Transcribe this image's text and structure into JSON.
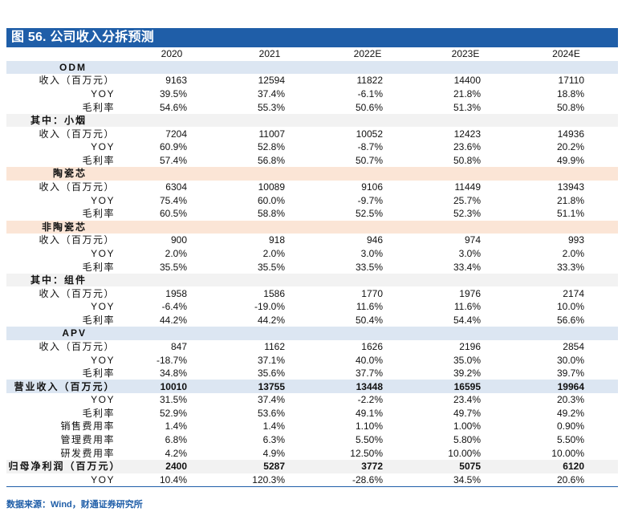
{
  "title": "图 56. 公司收入分拆预测",
  "years": [
    "2020",
    "2021",
    "2022E",
    "2023E",
    "2024E"
  ],
  "rows": [
    {
      "type": "section",
      "shade": "blue",
      "label": "ODM",
      "values": [
        "",
        "",
        "",
        "",
        ""
      ]
    },
    {
      "type": "data",
      "shade": "white",
      "label": "收入（百万元）",
      "values": [
        "9163",
        "12594",
        "11822",
        "14400",
        "17110"
      ]
    },
    {
      "type": "data",
      "shade": "white",
      "label": "YOY",
      "values": [
        "39.5%",
        "37.4%",
        "-6.1%",
        "21.8%",
        "18.8%"
      ]
    },
    {
      "type": "data",
      "shade": "white",
      "label": "毛利率",
      "values": [
        "54.6%",
        "55.3%",
        "50.6%",
        "51.3%",
        "50.8%"
      ]
    },
    {
      "type": "section",
      "shade": "light",
      "label": "其中：小烟",
      "values": [
        "",
        "",
        "",
        "",
        ""
      ]
    },
    {
      "type": "data",
      "shade": "white",
      "label": "收入（百万元）",
      "values": [
        "7204",
        "11007",
        "10052",
        "12423",
        "14936"
      ]
    },
    {
      "type": "data",
      "shade": "white",
      "label": "YOY",
      "values": [
        "60.9%",
        "52.8%",
        "-8.7%",
        "23.6%",
        "20.2%"
      ]
    },
    {
      "type": "data",
      "shade": "white",
      "label": "毛利率",
      "values": [
        "57.4%",
        "56.8%",
        "50.7%",
        "50.8%",
        "49.9%"
      ]
    },
    {
      "type": "section",
      "shade": "peach",
      "label": "陶瓷芯",
      "values": [
        "",
        "",
        "",
        "",
        ""
      ]
    },
    {
      "type": "data",
      "shade": "white",
      "label": "收入（百万元）",
      "values": [
        "6304",
        "10089",
        "9106",
        "11449",
        "13943"
      ]
    },
    {
      "type": "data",
      "shade": "white",
      "label": "YOY",
      "values": [
        "75.4%",
        "60.0%",
        "-9.7%",
        "25.7%",
        "21.8%"
      ]
    },
    {
      "type": "data",
      "shade": "white",
      "label": "毛利率",
      "values": [
        "60.5%",
        "58.8%",
        "52.5%",
        "52.3%",
        "51.1%"
      ]
    },
    {
      "type": "section",
      "shade": "peach",
      "label": "非陶瓷芯",
      "values": [
        "",
        "",
        "",
        "",
        ""
      ]
    },
    {
      "type": "data",
      "shade": "white",
      "label": "收入（百万元）",
      "values": [
        "900",
        "918",
        "946",
        "974",
        "993"
      ]
    },
    {
      "type": "data",
      "shade": "white",
      "label": "YOY",
      "values": [
        "2.0%",
        "2.0%",
        "3.0%",
        "3.0%",
        "2.0%"
      ]
    },
    {
      "type": "data",
      "shade": "white",
      "label": "毛利率",
      "values": [
        "35.5%",
        "35.5%",
        "33.5%",
        "33.4%",
        "33.3%"
      ]
    },
    {
      "type": "section",
      "shade": "light",
      "label": "其中：组件",
      "values": [
        "",
        "",
        "",
        "",
        ""
      ]
    },
    {
      "type": "data",
      "shade": "white",
      "label": "收入（百万元）",
      "values": [
        "1958",
        "1586",
        "1770",
        "1976",
        "2174"
      ]
    },
    {
      "type": "data",
      "shade": "white",
      "label": "YOY",
      "values": [
        "-6.4%",
        "-19.0%",
        "11.6%",
        "11.6%",
        "10.0%"
      ]
    },
    {
      "type": "data",
      "shade": "white",
      "label": "毛利率",
      "values": [
        "44.2%",
        "44.2%",
        "50.4%",
        "54.4%",
        "56.6%"
      ]
    },
    {
      "type": "section",
      "shade": "blue",
      "label": "APV",
      "values": [
        "",
        "",
        "",
        "",
        ""
      ]
    },
    {
      "type": "data",
      "shade": "white",
      "label": "收入（百万元）",
      "values": [
        "847",
        "1162",
        "1626",
        "2196",
        "2854"
      ]
    },
    {
      "type": "data",
      "shade": "white",
      "label": "YOY",
      "values": [
        "-18.7%",
        "37.1%",
        "40.0%",
        "35.0%",
        "30.0%"
      ]
    },
    {
      "type": "data",
      "shade": "white",
      "label": "毛利率",
      "values": [
        "34.8%",
        "35.6%",
        "37.7%",
        "39.2%",
        "39.7%"
      ]
    },
    {
      "type": "total",
      "shade": "blue",
      "label": "营业收入（百万元）",
      "values": [
        "10010",
        "13755",
        "13448",
        "16595",
        "19964"
      ]
    },
    {
      "type": "data",
      "shade": "white",
      "label": "YOY",
      "values": [
        "31.5%",
        "37.4%",
        "-2.2%",
        "23.4%",
        "20.3%"
      ]
    },
    {
      "type": "data",
      "shade": "white",
      "label": "毛利率",
      "values": [
        "52.9%",
        "53.6%",
        "49.1%",
        "49.7%",
        "49.2%"
      ]
    },
    {
      "type": "data",
      "shade": "white",
      "label": "销售费用率",
      "values": [
        "1.4%",
        "1.4%",
        "1.10%",
        "1.00%",
        "0.90%"
      ]
    },
    {
      "type": "data",
      "shade": "white",
      "label": "管理费用率",
      "values": [
        "6.8%",
        "6.3%",
        "5.50%",
        "5.80%",
        "5.50%"
      ]
    },
    {
      "type": "data",
      "shade": "white",
      "label": "研发费用率",
      "values": [
        "4.2%",
        "4.9%",
        "12.50%",
        "10.00%",
        "10.00%"
      ]
    },
    {
      "type": "total",
      "shade": "light",
      "label": "归母净利润（百万元）",
      "values": [
        "2400",
        "5287",
        "3772",
        "5075",
        "6120"
      ]
    },
    {
      "type": "data",
      "shade": "white",
      "label": "YOY",
      "values": [
        "10.4%",
        "120.3%",
        "-28.6%",
        "34.5%",
        "20.6%"
      ]
    }
  ],
  "source": "数据来源：Wind，财通证券研究所"
}
